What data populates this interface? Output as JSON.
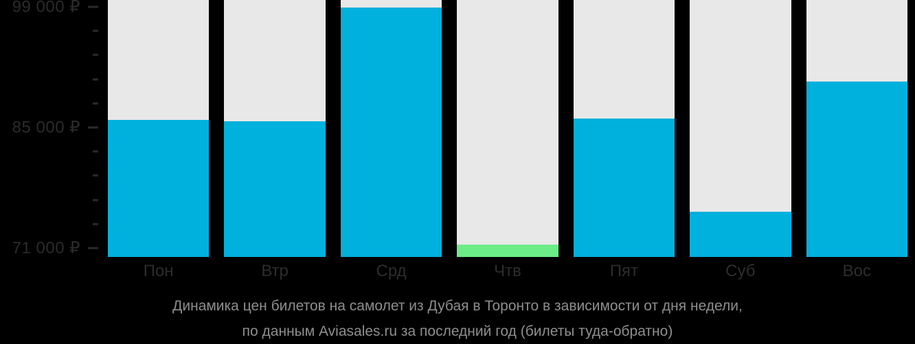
{
  "chart_data": {
    "type": "bar",
    "categories": [
      "Пон",
      "Втр",
      "Срд",
      "Чтв",
      "Пят",
      "Суб",
      "Вос"
    ],
    "values": [
      85900,
      85700,
      98900,
      71400,
      86000,
      75200,
      90300
    ],
    "bar_colors": [
      "#00b0dd",
      "#00b0dd",
      "#00b0dd",
      "#6cec86",
      "#00b0dd",
      "#00b0dd",
      "#00b0dd"
    ],
    "highlight_category": "Чтв",
    "currency": "₽",
    "ylim": [
      70000,
      99800
    ],
    "yticks_major": [
      {
        "value": 99000,
        "label": "99 000 ₽"
      },
      {
        "value": 85000,
        "label": "85 000 ₽"
      },
      {
        "value": 71000,
        "label": "71 000 ₽"
      }
    ],
    "ytick_minor_step": 2800,
    "grid": false,
    "legend": false,
    "track_color": "#e8e8e8",
    "background": "#000000",
    "xlabel": "",
    "ylabel": ""
  },
  "caption": {
    "line1": "Динамика цен билетов на самолет из Дубая в Торонто в зависимости от дня недели,",
    "line2": "по данным Aviasales.ru за последний год (билеты туда-обратно)"
  },
  "colors": {
    "bar_default": "#00b0dd",
    "bar_highlight": "#6cec86",
    "track": "#e8e8e8",
    "axis_text": "#2b2b2b",
    "caption_text": "#8e8e8e",
    "background": "#000000"
  }
}
